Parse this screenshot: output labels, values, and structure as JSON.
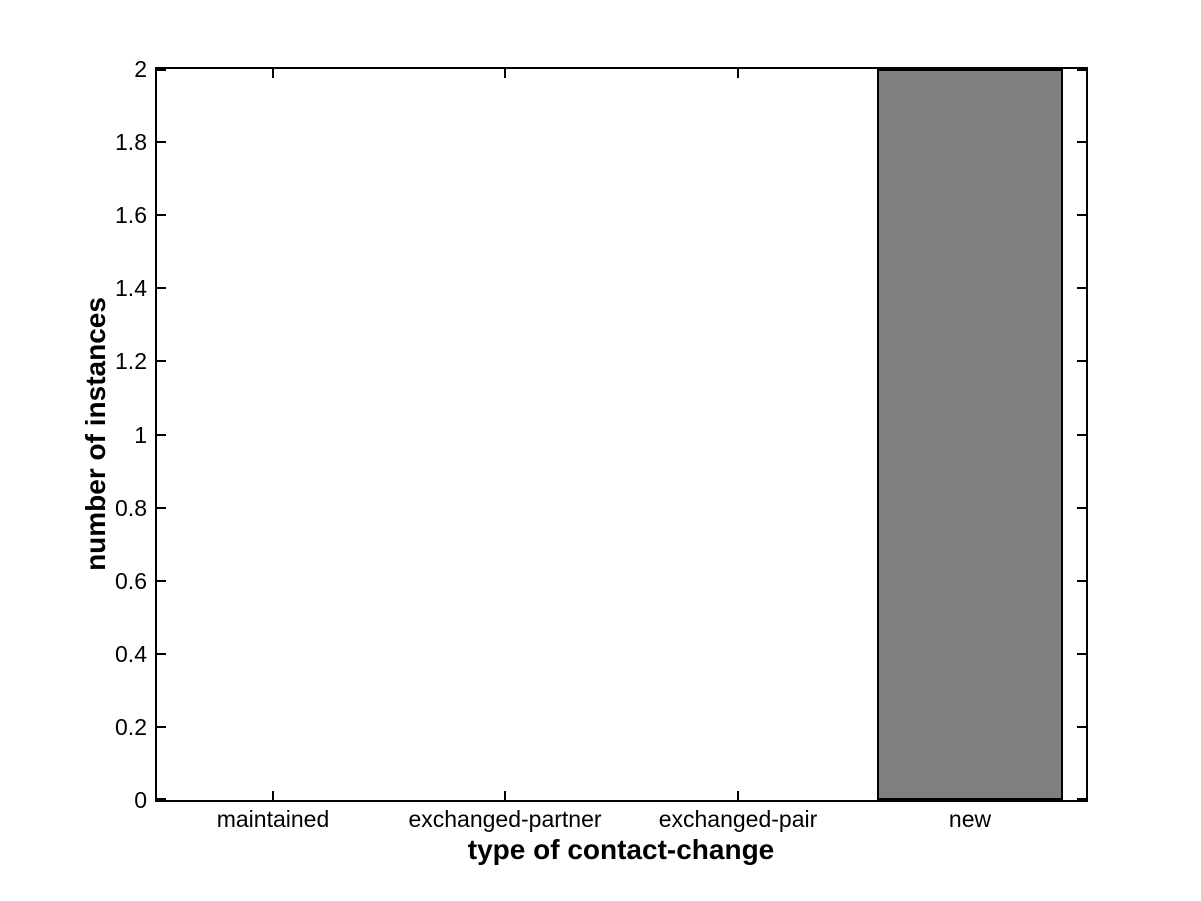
{
  "chart_data": {
    "type": "bar",
    "title": "",
    "categories": [
      "maintained",
      "exchanged-partner",
      "exchanged-pair",
      "new"
    ],
    "values": [
      0,
      0,
      0,
      2
    ],
    "xlabel": "type of contact-change",
    "ylabel": "number of instances",
    "ylim": [
      0,
      2
    ],
    "yticks": [
      0,
      0.2,
      0.4,
      0.6,
      0.8,
      1,
      1.2,
      1.4,
      1.6,
      1.8,
      2
    ],
    "ytick_labels": [
      "0",
      "0.2",
      "0.4",
      "0.6",
      "0.8",
      "1",
      "1.2",
      "1.4",
      "1.6",
      "1.8",
      "2"
    ],
    "bar_width_fraction": 0.8,
    "bar_fill_color": "#7f7f7f",
    "bar_edge_color": "#000000",
    "axis_color": "#000000",
    "background_color": "#ffffff",
    "grid": "off",
    "legend": "none"
  }
}
